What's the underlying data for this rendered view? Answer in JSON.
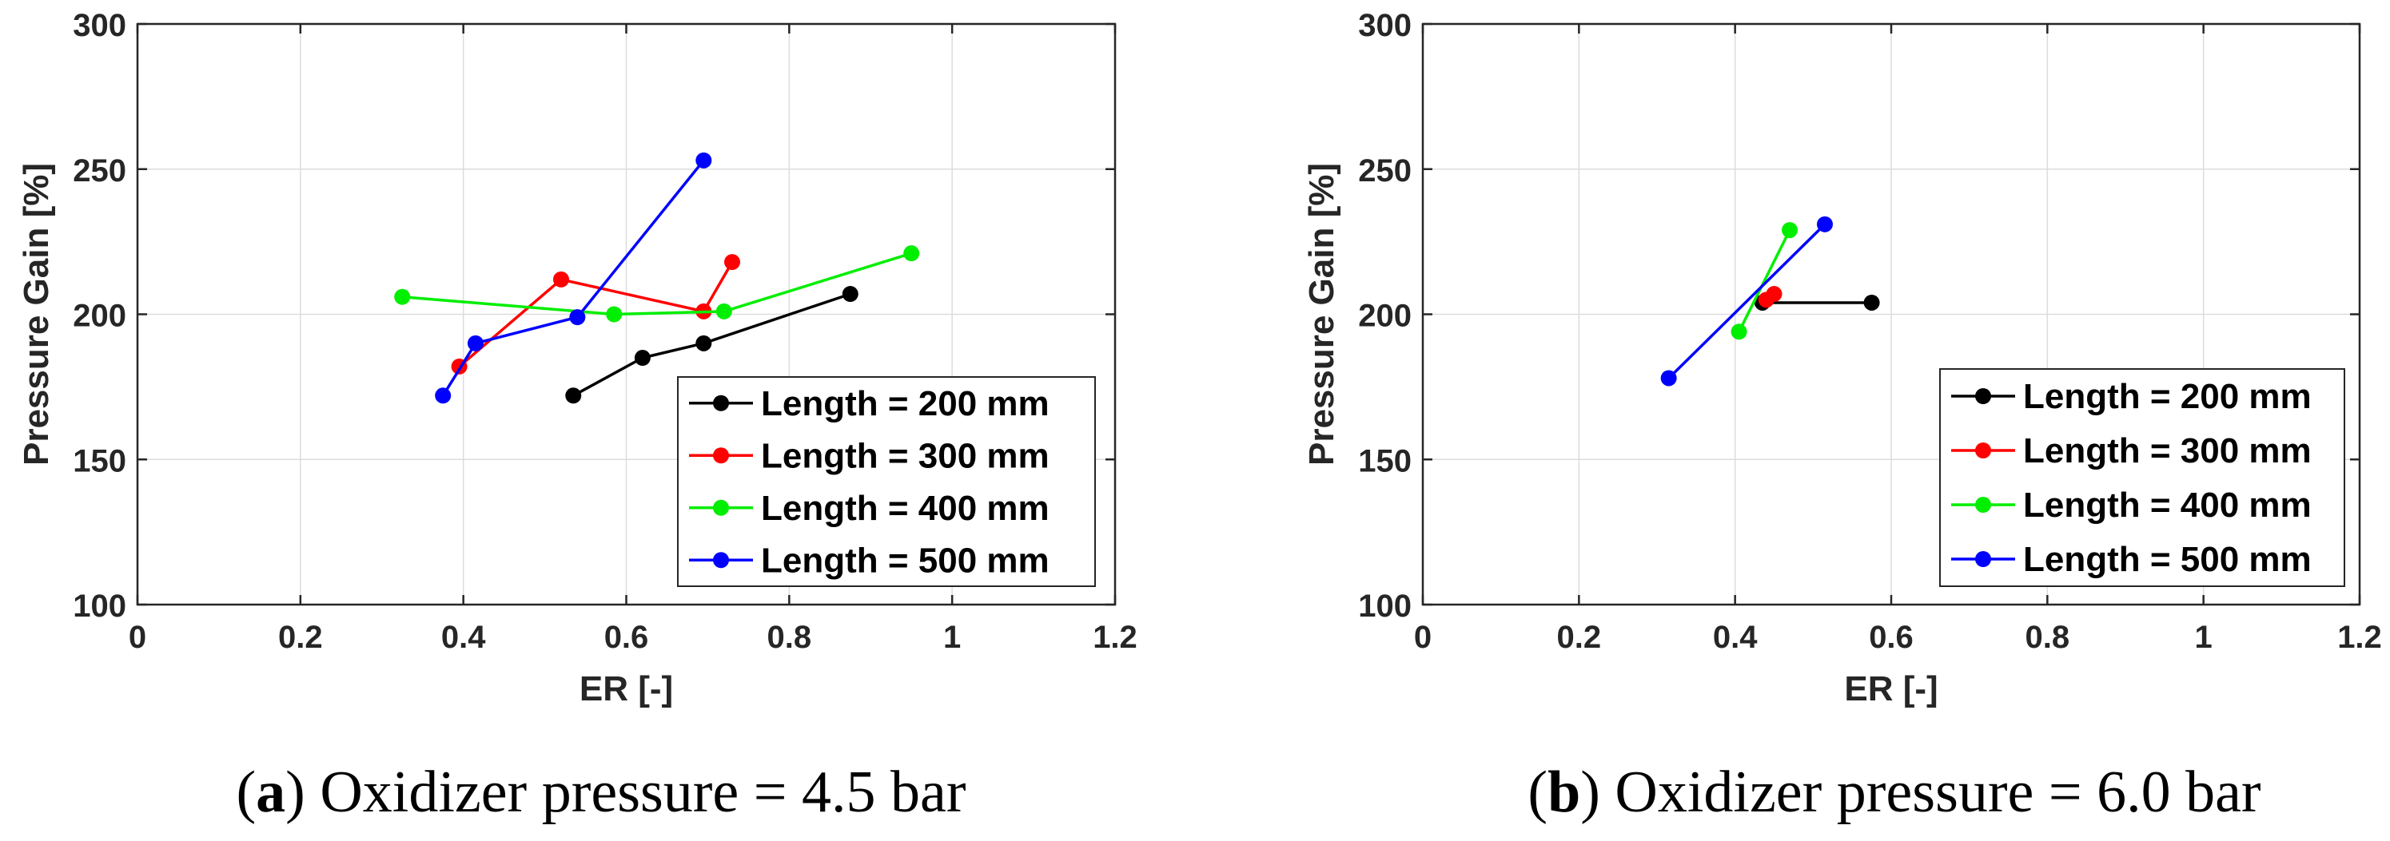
{
  "chart_data": [
    {
      "id": "a",
      "type": "line",
      "caption": {
        "letter": "a",
        "text": "Oxidizer pressure = 4.5 bar"
      },
      "xlabel": "ER [-]",
      "ylabel": "Pressure Gain [%]",
      "xlim": [
        0,
        1.2
      ],
      "ylim": [
        100,
        300
      ],
      "xticks": [
        0,
        0.2,
        0.4,
        0.6,
        0.8,
        1,
        1.2
      ],
      "xtick_labels": [
        "0",
        "0.2",
        "0.4",
        "0.6",
        "0.8",
        "1",
        "1.2"
      ],
      "yticks": [
        100,
        150,
        200,
        250,
        300
      ],
      "ytick_labels": [
        "100",
        "150",
        "200",
        "250",
        "300"
      ],
      "grid": true,
      "legend_position": "bottom-right",
      "series": [
        {
          "name": "Length = 200 mm",
          "color": "#000000",
          "x": [
            0.535,
            0.62,
            0.695,
            0.875
          ],
          "y": [
            172,
            185,
            190,
            207
          ]
        },
        {
          "name": "Length = 300 mm",
          "color": "#ff0000",
          "x": [
            0.395,
            0.52,
            0.695,
            0.73
          ],
          "y": [
            182,
            212,
            201,
            218
          ]
        },
        {
          "name": "Length = 400 mm",
          "color": "#00ee00",
          "x": [
            0.325,
            0.585,
            0.72,
            0.95
          ],
          "y": [
            206,
            200,
            201,
            221
          ]
        },
        {
          "name": "Length = 500 mm",
          "color": "#0000ff",
          "x": [
            0.375,
            0.415,
            0.54,
            0.695
          ],
          "y": [
            172,
            190,
            199,
            253
          ]
        }
      ]
    },
    {
      "id": "b",
      "type": "line",
      "caption": {
        "letter": "b",
        "text": "Oxidizer pressure = 6.0 bar"
      },
      "xlabel": "ER [-]",
      "ylabel": "Pressure Gain [%]",
      "xlim": [
        0,
        1.2
      ],
      "ylim": [
        100,
        300
      ],
      "xticks": [
        0,
        0.2,
        0.4,
        0.6,
        0.8,
        1,
        1.2
      ],
      "xtick_labels": [
        "0",
        "0.2",
        "0.4",
        "0.6",
        "0.8",
        "1",
        "1.2"
      ],
      "yticks": [
        100,
        150,
        200,
        250,
        300
      ],
      "ytick_labels": [
        "100",
        "150",
        "200",
        "250",
        "300"
      ],
      "grid": true,
      "legend_position": "bottom-right",
      "series": [
        {
          "name": "Length = 200 mm",
          "color": "#000000",
          "x": [
            0.435,
            0.575
          ],
          "y": [
            204,
            204
          ]
        },
        {
          "name": "Length = 300 mm",
          "color": "#ff0000",
          "x": [
            0.44,
            0.45
          ],
          "y": [
            205,
            207
          ]
        },
        {
          "name": "Length = 400 mm",
          "color": "#00ee00",
          "x": [
            0.405,
            0.47
          ],
          "y": [
            194,
            229
          ]
        },
        {
          "name": "Length = 500 mm",
          "color": "#0000ff",
          "x": [
            0.315,
            0.515
          ],
          "y": [
            178,
            231
          ]
        }
      ]
    }
  ]
}
